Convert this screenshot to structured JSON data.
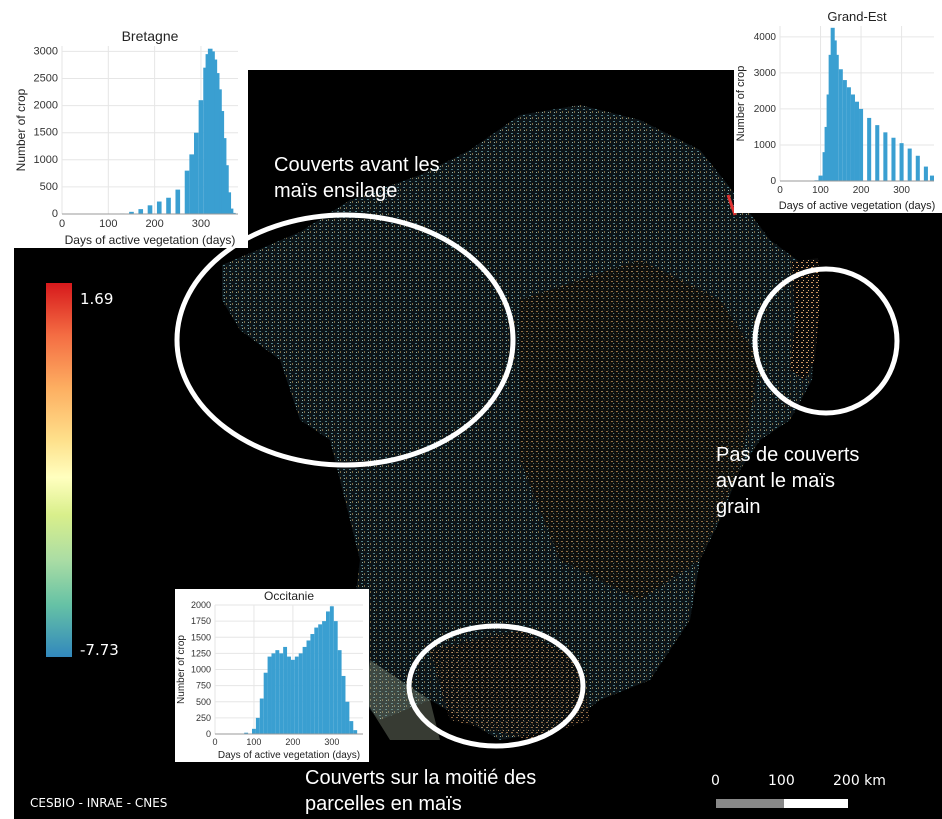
{
  "map": {
    "colorbar": {
      "max_label": "1.69",
      "min_label": "-7.73",
      "colors": [
        "#d7191c",
        "#fdae61",
        "#ffffbf",
        "#abdda4",
        "#3288bd"
      ]
    },
    "annotations": {
      "bretagne_note": "Couverts avant les\nmaïs  ensilage",
      "grandest_note": "Pas de couverts\navant le maïs\ngrain",
      "occitanie_note": "Couverts sur  la moitié des\nparcelles en maïs"
    },
    "credit": "CESBIO - INRAE - CNES",
    "scale": {
      "label_0": "0",
      "label_100": "100",
      "label_200": "200 km"
    }
  },
  "chart_data": [
    {
      "type": "bar",
      "title": "Bretagne",
      "xlabel": "Days of active vegetation (days)",
      "ylabel": "Number of crop",
      "xlim": [
        0,
        380
      ],
      "ylim": [
        0,
        3100
      ],
      "xticks": [
        0,
        100,
        200,
        300
      ],
      "yticks": [
        0,
        500,
        1000,
        1500,
        2000,
        2500,
        3000
      ],
      "x": [
        130,
        150,
        170,
        190,
        210,
        230,
        250,
        270,
        280,
        290,
        300,
        310,
        315,
        320,
        325,
        330,
        335,
        340,
        345,
        350,
        355,
        360,
        365,
        370
      ],
      "values": [
        10,
        40,
        90,
        160,
        230,
        300,
        450,
        800,
        1100,
        1500,
        2100,
        2700,
        2950,
        3050,
        3000,
        2850,
        2600,
        2300,
        1900,
        1400,
        900,
        400,
        100,
        20
      ]
    },
    {
      "type": "bar",
      "title": "Grand-Est",
      "xlabel": "Days of active vegetation (days)",
      "ylabel": "Number of crop",
      "xlim": [
        0,
        380
      ],
      "ylim": [
        0,
        4300
      ],
      "xticks": [
        0,
        100,
        200,
        300
      ],
      "yticks": [
        0,
        1000,
        2000,
        3000,
        4000
      ],
      "x": [
        90,
        100,
        110,
        115,
        120,
        125,
        130,
        135,
        140,
        150,
        160,
        170,
        180,
        190,
        200,
        220,
        240,
        260,
        280,
        300,
        320,
        340,
        360,
        375
      ],
      "values": [
        20,
        150,
        800,
        1500,
        2400,
        3500,
        4250,
        3900,
        3500,
        3100,
        2800,
        2600,
        2400,
        2200,
        2000,
        1750,
        1550,
        1350,
        1200,
        1050,
        900,
        700,
        400,
        150
      ]
    },
    {
      "type": "bar",
      "title": "Occitanie",
      "xlabel": "Days of active vegetation (days)",
      "ylabel": "Number of crop",
      "xlim": [
        0,
        380
      ],
      "ylim": [
        0,
        2000
      ],
      "xticks": [
        0,
        100,
        200,
        300
      ],
      "yticks": [
        0,
        250,
        500,
        750,
        1000,
        1250,
        1500,
        1750,
        2000
      ],
      "x": [
        80,
        100,
        110,
        120,
        130,
        140,
        150,
        160,
        170,
        180,
        190,
        200,
        210,
        220,
        230,
        240,
        250,
        260,
        270,
        280,
        290,
        300,
        310,
        320,
        330,
        340,
        350,
        360
      ],
      "values": [
        20,
        80,
        250,
        550,
        950,
        1200,
        1250,
        1300,
        1250,
        1350,
        1200,
        1150,
        1200,
        1250,
        1350,
        1450,
        1550,
        1650,
        1700,
        1750,
        1900,
        1980,
        1750,
        1300,
        900,
        500,
        200,
        60
      ]
    }
  ]
}
